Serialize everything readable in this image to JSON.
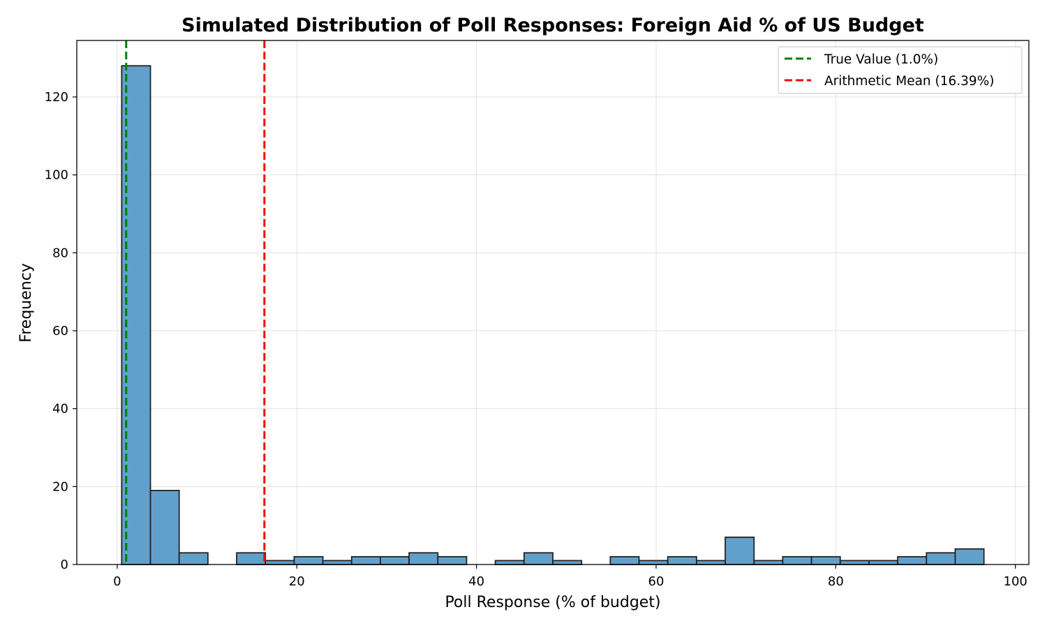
{
  "chart_data": {
    "type": "bar",
    "title": "Simulated Distribution of Poll Responses: Foreign Aid % of US Budget",
    "xlabel": "Poll Response (% of budget)",
    "ylabel": "Frequency",
    "xlim": [
      -4.5,
      101.5
    ],
    "ylim": [
      0,
      134.5
    ],
    "xticks": [
      0,
      20,
      40,
      60,
      80,
      100
    ],
    "yticks": [
      0,
      20,
      40,
      60,
      80,
      100,
      120
    ],
    "grid": true,
    "legend_position": "top-right",
    "bars": [
      {
        "x0": 0.5,
        "x1": 3.7,
        "value": 128
      },
      {
        "x0": 3.7,
        "x1": 6.9,
        "value": 19
      },
      {
        "x0": 6.9,
        "x1": 10.1,
        "value": 3
      },
      {
        "x0": 10.1,
        "x1": 13.3,
        "value": 0
      },
      {
        "x0": 13.3,
        "x1": 16.5,
        "value": 3
      },
      {
        "x0": 16.5,
        "x1": 19.7,
        "value": 1
      },
      {
        "x0": 19.7,
        "x1": 22.9,
        "value": 2
      },
      {
        "x0": 22.9,
        "x1": 26.1,
        "value": 1
      },
      {
        "x0": 26.1,
        "x1": 29.3,
        "value": 2
      },
      {
        "x0": 29.3,
        "x1": 32.5,
        "value": 2
      },
      {
        "x0": 32.5,
        "x1": 35.7,
        "value": 3
      },
      {
        "x0": 35.7,
        "x1": 38.9,
        "value": 2
      },
      {
        "x0": 38.9,
        "x1": 42.1,
        "value": 0
      },
      {
        "x0": 42.1,
        "x1": 45.3,
        "value": 1
      },
      {
        "x0": 45.3,
        "x1": 48.5,
        "value": 3
      },
      {
        "x0": 48.5,
        "x1": 51.7,
        "value": 1
      },
      {
        "x0": 51.7,
        "x1": 54.9,
        "value": 0
      },
      {
        "x0": 54.9,
        "x1": 58.1,
        "value": 2
      },
      {
        "x0": 58.1,
        "x1": 61.3,
        "value": 1
      },
      {
        "x0": 61.3,
        "x1": 64.5,
        "value": 2
      },
      {
        "x0": 64.5,
        "x1": 67.7,
        "value": 1
      },
      {
        "x0": 67.7,
        "x1": 70.9,
        "value": 7
      },
      {
        "x0": 70.9,
        "x1": 74.1,
        "value": 1
      },
      {
        "x0": 74.1,
        "x1": 77.3,
        "value": 2
      },
      {
        "x0": 77.3,
        "x1": 80.5,
        "value": 2
      },
      {
        "x0": 80.5,
        "x1": 83.7,
        "value": 1
      },
      {
        "x0": 83.7,
        "x1": 86.9,
        "value": 1
      },
      {
        "x0": 86.9,
        "x1": 90.1,
        "value": 2
      },
      {
        "x0": 90.1,
        "x1": 93.3,
        "value": 3
      },
      {
        "x0": 93.3,
        "x1": 96.5,
        "value": 4
      }
    ],
    "reference_lines": [
      {
        "name": "True Value (1.0%)",
        "x": 1.0,
        "color": "#008000"
      },
      {
        "name": "Arithmetic Mean (16.39%)",
        "x": 16.39,
        "color": "#ff0000"
      }
    ],
    "bar_color": "#62a0cc",
    "bar_edge_color": "#222222"
  }
}
